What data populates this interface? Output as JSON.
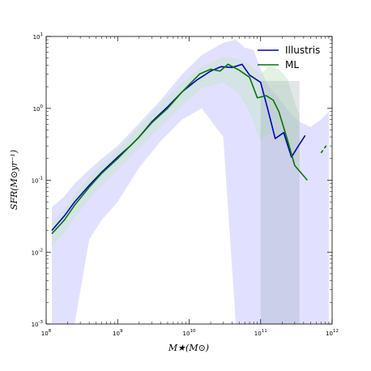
{
  "chart_data": {
    "type": "line",
    "title": "",
    "xlabel": "M★(M⊙)",
    "ylabel": "SFR(M⊙yr⁻¹)",
    "xscale": "log",
    "yscale": "log",
    "xlim": [
      100000000.0,
      1000000000000.0
    ],
    "ylim": [
      0.001,
      10
    ],
    "x_ticks": [
      {
        "value": 100000000.0,
        "base": "10",
        "exp": "8"
      },
      {
        "value": 1000000000.0,
        "base": "10",
        "exp": "9"
      },
      {
        "value": 10000000000.0,
        "base": "10",
        "exp": "10"
      },
      {
        "value": 100000000000.0,
        "base": "10",
        "exp": "11"
      },
      {
        "value": 1000000000000.0,
        "base": "10",
        "exp": "12"
      }
    ],
    "y_ticks": [
      {
        "value": 0.001,
        "base": "10",
        "exp": "-3"
      },
      {
        "value": 0.01,
        "base": "10",
        "exp": "-2"
      },
      {
        "value": 0.1,
        "base": "10",
        "exp": "-1"
      },
      {
        "value": 1,
        "base": "10",
        "exp": "0"
      },
      {
        "value": 10,
        "base": "10",
        "exp": "1"
      }
    ],
    "legend": {
      "placement": "top-right"
    },
    "grid": false,
    "series": [
      {
        "name": "Illustris",
        "color": "#0000cc",
        "x": [
          120000000.0,
          180000000.0,
          250000000.0,
          400000000.0,
          600000000.0,
          1000000000.0,
          1500000000.0,
          2000000000.0,
          3000000000.0,
          5000000000.0,
          8000000000.0,
          13000000000.0,
          20000000000.0,
          28000000000.0,
          40000000000.0,
          55000000000.0,
          70000000000.0,
          100000000000.0,
          125000000000.0,
          160000000000.0,
          210000000000.0,
          270000000000.0,
          330000000000.0,
          420000000000.0
        ],
        "y": [
          0.02,
          0.032,
          0.05,
          0.085,
          0.13,
          0.21,
          0.3,
          0.4,
          0.65,
          1.05,
          1.7,
          2.5,
          3.3,
          3.8,
          3.7,
          4.1,
          2.9,
          2.3,
          1.0,
          0.38,
          0.46,
          0.21,
          0.29,
          0.42
        ]
      },
      {
        "name": "ML",
        "color": "#007700",
        "x": [
          120000000.0,
          180000000.0,
          250000000.0,
          400000000.0,
          600000000.0,
          1000000000.0,
          1500000000.0,
          2000000000.0,
          3000000000.0,
          5000000000.0,
          8000000000.0,
          14000000000.0,
          20000000000.0,
          27000000000.0,
          35000000000.0,
          50000000000.0,
          70000000000.0,
          90000000000.0,
          120000000000.0,
          150000000000.0,
          180000000000.0,
          240000000000.0,
          300000000000.0,
          450000000000.0
        ],
        "y": [
          0.018,
          0.028,
          0.045,
          0.08,
          0.125,
          0.2,
          0.3,
          0.4,
          0.63,
          1.0,
          1.7,
          3.0,
          3.5,
          3.3,
          4.1,
          3.4,
          2.7,
          1.4,
          1.5,
          1.3,
          0.9,
          0.35,
          0.16,
          0.1
        ]
      },
      {
        "name": "",
        "color": "#007700",
        "style": "dashed",
        "x": [
          700000000000.0,
          860000000000.0
        ],
        "y": [
          0.24,
          0.32
        ]
      }
    ],
    "bands": [
      {
        "color": "#c8c8ff",
        "opacity": 0.55,
        "x": [
          120000000.0,
          180000000.0,
          250000000.0,
          400000000.0,
          600000000.0,
          1000000000.0,
          2000000000.0,
          4000000000.0,
          8000000000.0,
          15000000000.0,
          30000000000.0,
          45000000000.0,
          60000000000.0,
          80000000000.0,
          100000000000.0,
          130000000000.0,
          180000000000.0,
          250000000000.0,
          350000000000.0,
          500000000000.0,
          700000000000.0,
          900000000000.0
        ],
        "upper": [
          0.042,
          0.06,
          0.09,
          0.14,
          0.2,
          0.3,
          0.62,
          1.3,
          3.0,
          5.5,
          8.2,
          9.0,
          7.0,
          6.5,
          3.5,
          2.0,
          1.4,
          0.9,
          0.65,
          0.55,
          0.7,
          0.9
        ],
        "lower": [
          0.001,
          0.001,
          0.001,
          0.015,
          0.028,
          0.05,
          0.15,
          0.35,
          0.7,
          1.0,
          0.4,
          0.001,
          0.001,
          0.001,
          0.001,
          0.001,
          0.001,
          0.001,
          0.001,
          0.001,
          0.001,
          0.001
        ]
      },
      {
        "color": "#c8e6c8",
        "opacity": 0.5,
        "x": [
          120000000.0,
          180000000.0,
          250000000.0,
          400000000.0,
          600000000.0,
          1000000000.0,
          2000000000.0,
          4000000000.0,
          8000000000.0,
          15000000000.0,
          30000000000.0,
          50000000000.0,
          70000000000.0,
          100000000000.0,
          130000000000.0,
          180000000000.0,
          240000000000.0,
          300000000000.0,
          350000000000.0
        ],
        "upper": [
          0.026,
          0.04,
          0.063,
          0.11,
          0.17,
          0.27,
          0.55,
          1.15,
          2.3,
          3.8,
          5.2,
          4.8,
          4.0,
          3.0,
          3.8,
          3.5,
          2.5,
          1.2,
          0.8
        ],
        "lower": [
          0.012,
          0.019,
          0.03,
          0.055,
          0.085,
          0.14,
          0.28,
          0.56,
          1.1,
          1.9,
          2.3,
          1.6,
          0.9,
          0.35,
          0.45,
          0.4,
          0.28,
          0.2,
          0.15
        ]
      },
      {
        "color": "#8c9ca8",
        "opacity": 0.25,
        "x": [
          100000000000.0,
          350000000000.0
        ],
        "upper": [
          2.4,
          2.4
        ],
        "lower": [
          0.001,
          0.001
        ]
      }
    ]
  }
}
